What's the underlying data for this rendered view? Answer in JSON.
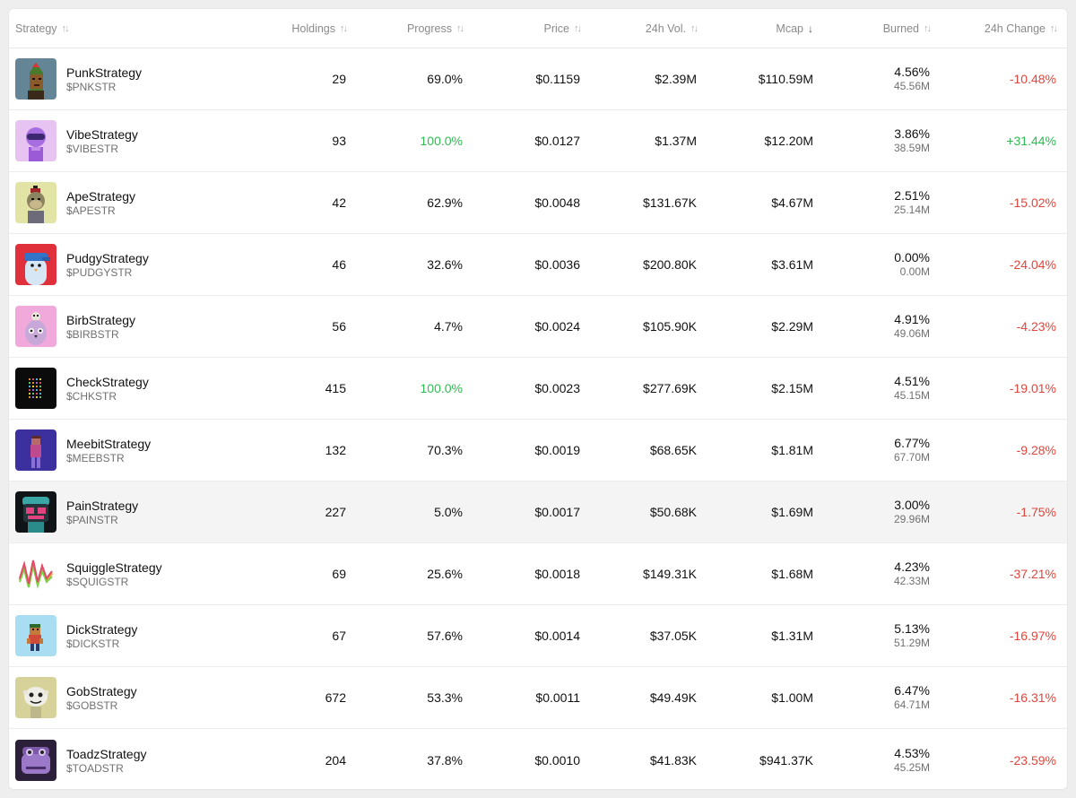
{
  "columns": {
    "strategy": "Strategy",
    "holdings": "Holdings",
    "progress": "Progress",
    "price": "Price",
    "volume": "24h Vol.",
    "mcap": "Mcap",
    "burned": "Burned",
    "change": "24h Change"
  },
  "sort": {
    "column": "mcap",
    "direction": "desc"
  },
  "colors": {
    "positive": "#2dbd51",
    "negative": "#e2453c",
    "complete_progress": "#2dbd51"
  },
  "rows": [
    {
      "name": "PunkStrategy",
      "ticker": "$PNKSTR",
      "holdings": "29",
      "progress": "69.0%",
      "progress_complete": false,
      "price": "$0.1159",
      "volume": "$2.39M",
      "mcap": "$110.59M",
      "burned_pct": "4.56%",
      "burned_amt": "45.56M",
      "change": "-10.48%",
      "change_dir": "down",
      "icon": "punk-avatar-icon"
    },
    {
      "name": "VibeStrategy",
      "ticker": "$VIBESTR",
      "holdings": "93",
      "progress": "100.0%",
      "progress_complete": true,
      "price": "$0.0127",
      "volume": "$1.37M",
      "mcap": "$12.20M",
      "burned_pct": "3.86%",
      "burned_amt": "38.59M",
      "change": "+31.44%",
      "change_dir": "up",
      "icon": "vibe-avatar-icon"
    },
    {
      "name": "ApeStrategy",
      "ticker": "$APESTR",
      "holdings": "42",
      "progress": "62.9%",
      "progress_complete": false,
      "price": "$0.0048",
      "volume": "$131.67K",
      "mcap": "$4.67M",
      "burned_pct": "2.51%",
      "burned_amt": "25.14M",
      "change": "-15.02%",
      "change_dir": "down",
      "icon": "ape-avatar-icon"
    },
    {
      "name": "PudgyStrategy",
      "ticker": "$PUDGYSTR",
      "holdings": "46",
      "progress": "32.6%",
      "progress_complete": false,
      "price": "$0.0036",
      "volume": "$200.80K",
      "mcap": "$3.61M",
      "burned_pct": "0.00%",
      "burned_amt": "0.00M",
      "change": "-24.04%",
      "change_dir": "down",
      "icon": "pudgy-avatar-icon"
    },
    {
      "name": "BirbStrategy",
      "ticker": "$BIRBSTR",
      "holdings": "56",
      "progress": "4.7%",
      "progress_complete": false,
      "price": "$0.0024",
      "volume": "$105.90K",
      "mcap": "$2.29M",
      "burned_pct": "4.91%",
      "burned_amt": "49.06M",
      "change": "-4.23%",
      "change_dir": "down",
      "icon": "birb-avatar-icon"
    },
    {
      "name": "CheckStrategy",
      "ticker": "$CHKSTR",
      "holdings": "415",
      "progress": "100.0%",
      "progress_complete": true,
      "price": "$0.0023",
      "volume": "$277.69K",
      "mcap": "$2.15M",
      "burned_pct": "4.51%",
      "burned_amt": "45.15M",
      "change": "-19.01%",
      "change_dir": "down",
      "icon": "checks-avatar-icon"
    },
    {
      "name": "MeebitStrategy",
      "ticker": "$MEEBSTR",
      "holdings": "132",
      "progress": "70.3%",
      "progress_complete": false,
      "price": "$0.0019",
      "volume": "$68.65K",
      "mcap": "$1.81M",
      "burned_pct": "6.77%",
      "burned_amt": "67.70M",
      "change": "-9.28%",
      "change_dir": "down",
      "icon": "meebit-avatar-icon"
    },
    {
      "name": "PainStrategy",
      "ticker": "$PAINSTR",
      "holdings": "227",
      "progress": "5.0%",
      "progress_complete": false,
      "price": "$0.0017",
      "volume": "$50.68K",
      "mcap": "$1.69M",
      "burned_pct": "3.00%",
      "burned_amt": "29.96M",
      "change": "-1.75%",
      "change_dir": "down",
      "icon": "pain-avatar-icon",
      "highlighted": true
    },
    {
      "name": "SquiggleStrategy",
      "ticker": "$SQUIGSTR",
      "holdings": "69",
      "progress": "25.6%",
      "progress_complete": false,
      "price": "$0.0018",
      "volume": "$149.31K",
      "mcap": "$1.68M",
      "burned_pct": "4.23%",
      "burned_amt": "42.33M",
      "change": "-37.21%",
      "change_dir": "down",
      "icon": "squiggle-avatar-icon"
    },
    {
      "name": "DickStrategy",
      "ticker": "$DICKSTR",
      "holdings": "67",
      "progress": "57.6%",
      "progress_complete": false,
      "price": "$0.0014",
      "volume": "$37.05K",
      "mcap": "$1.31M",
      "burned_pct": "5.13%",
      "burned_amt": "51.29M",
      "change": "-16.97%",
      "change_dir": "down",
      "icon": "dick-avatar-icon"
    },
    {
      "name": "GobStrategy",
      "ticker": "$GOBSTR",
      "holdings": "672",
      "progress": "53.3%",
      "progress_complete": false,
      "price": "$0.0011",
      "volume": "$49.49K",
      "mcap": "$1.00M",
      "burned_pct": "6.47%",
      "burned_amt": "64.71M",
      "change": "-16.31%",
      "change_dir": "down",
      "icon": "gob-avatar-icon"
    },
    {
      "name": "ToadzStrategy",
      "ticker": "$TOADSTR",
      "holdings": "204",
      "progress": "37.8%",
      "progress_complete": false,
      "price": "$0.0010",
      "volume": "$41.83K",
      "mcap": "$941.37K",
      "burned_pct": "4.53%",
      "burned_amt": "45.25M",
      "change": "-23.59%",
      "change_dir": "down",
      "icon": "toadz-avatar-icon"
    }
  ]
}
